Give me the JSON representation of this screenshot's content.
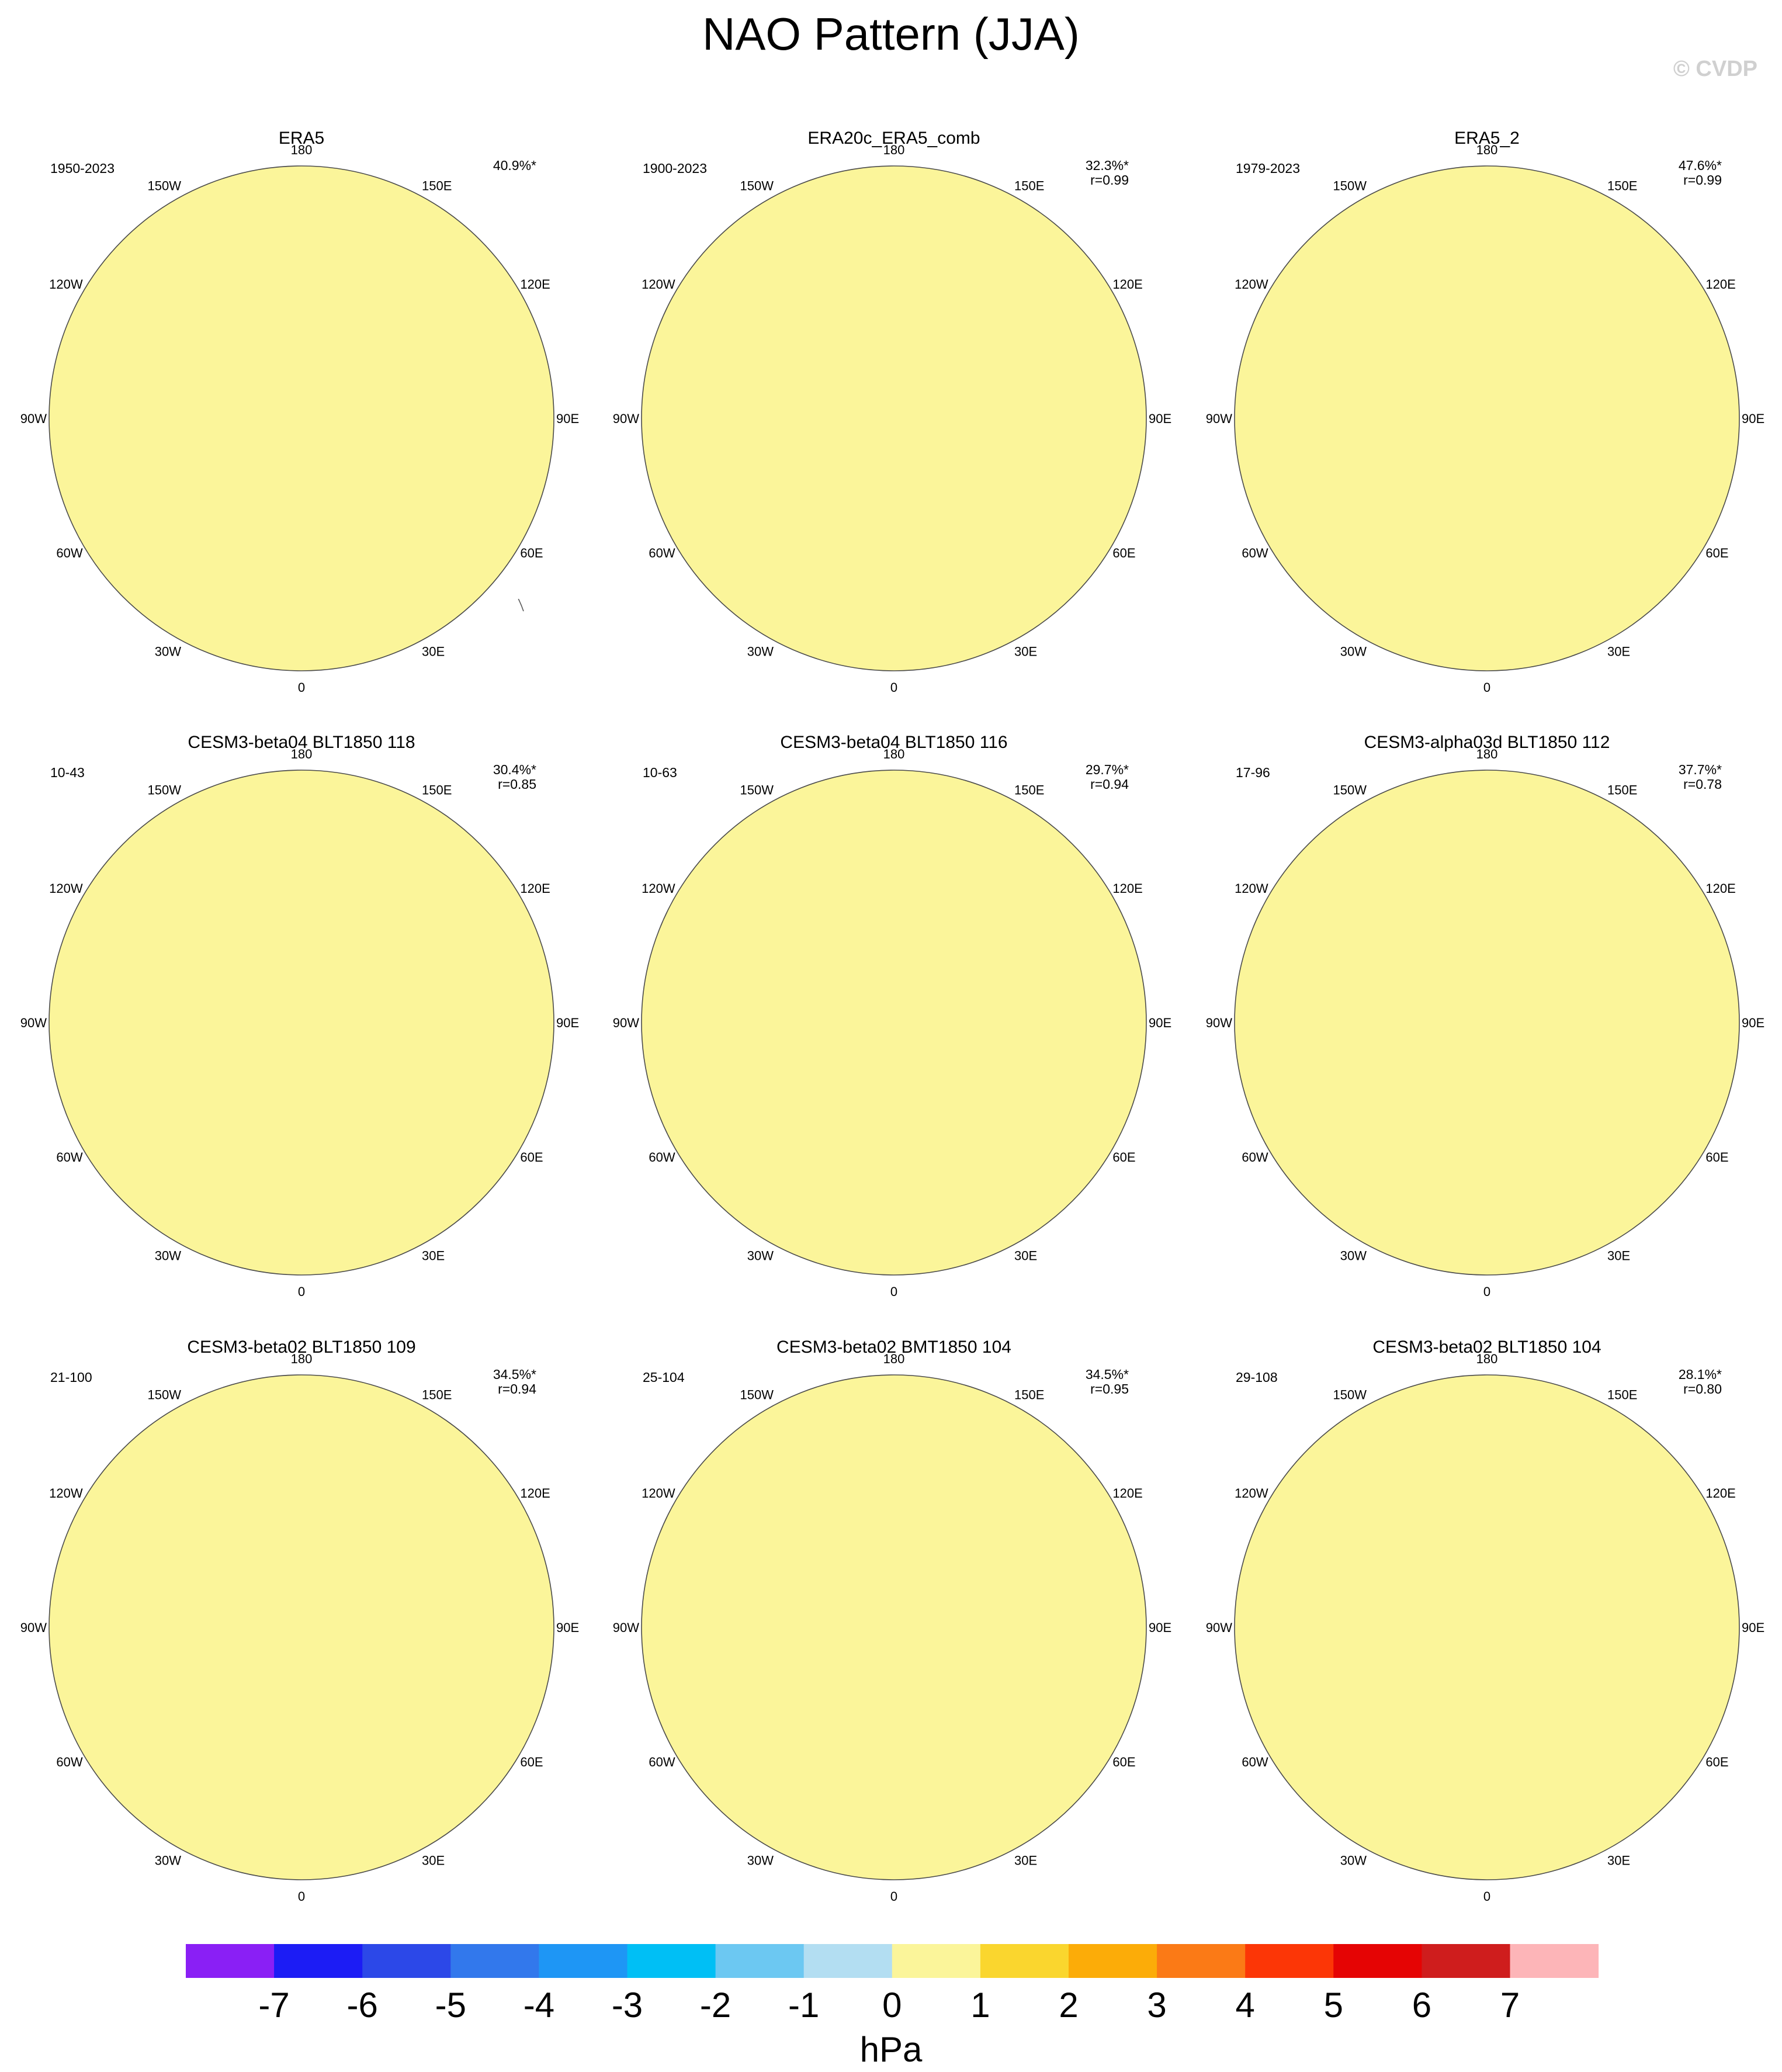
{
  "title": "NAO Pattern (JJA)",
  "watermark": "© CVDP",
  "longitude_labels": [
    "180",
    "150E",
    "120E",
    "90E",
    "60E",
    "30E",
    "0",
    "30W",
    "60W",
    "90W",
    "120W",
    "150W"
  ],
  "panels": [
    {
      "name": "ERA5",
      "years": "1950-2023",
      "pct": "40.9%*",
      "corr": "",
      "pattern": "a"
    },
    {
      "name": "ERA20c_ERA5_comb",
      "years": "1900-2023",
      "pct": "32.3%*",
      "corr": "r=0.99",
      "pattern": "b"
    },
    {
      "name": "ERA5_2",
      "years": "1979-2023",
      "pct": "47.6%*",
      "corr": "r=0.99",
      "pattern": "a"
    },
    {
      "name": "CESM3-beta04 BLT1850 118",
      "years": "10-43",
      "pct": "30.4%*",
      "corr": "r=0.85",
      "pattern": "c"
    },
    {
      "name": "CESM3-beta04 BLT1850 116",
      "years": "10-63",
      "pct": "29.7%*",
      "corr": "r=0.94",
      "pattern": "d"
    },
    {
      "name": "CESM3-alpha03d BLT1850 112",
      "years": "17-96",
      "pct": "37.7%*",
      "corr": "r=0.78",
      "pattern": "e"
    },
    {
      "name": "CESM3-beta02 BLT1850 109",
      "years": "21-100",
      "pct": "34.5%*",
      "corr": "r=0.94",
      "pattern": "f"
    },
    {
      "name": "CESM3-beta02 BMT1850 104",
      "years": "25-104",
      "pct": "34.5%*",
      "corr": "r=0.95",
      "pattern": "g"
    },
    {
      "name": "CESM3-beta02 BLT1850 104",
      "years": "29-108",
      "pct": "28.1%*",
      "corr": "r=0.80",
      "pattern": "h"
    }
  ],
  "colorbar": {
    "unit": "hPa",
    "labels": [
      "-7",
      "-6",
      "-5",
      "-4",
      "-3",
      "-2",
      "-1",
      "0",
      "1",
      "2",
      "3",
      "4",
      "5",
      "6",
      "7"
    ],
    "colors": [
      "#8a1ff5",
      "#1c1cf5",
      "#2c48e8",
      "#3278ec",
      "#1e96f5",
      "#00bff5",
      "#6cc8f2",
      "#b3def2",
      "#fbf59a",
      "#fad62e",
      "#fcac08",
      "#fb7a16",
      "#fc3606",
      "#e50404",
      "#cf1d1d",
      "#fdb5b8"
    ]
  },
  "colors": {
    "land_outline": "#3a3a3a",
    "map_outline": "#4a4a4a",
    "watermark": "#d0d0d0"
  }
}
